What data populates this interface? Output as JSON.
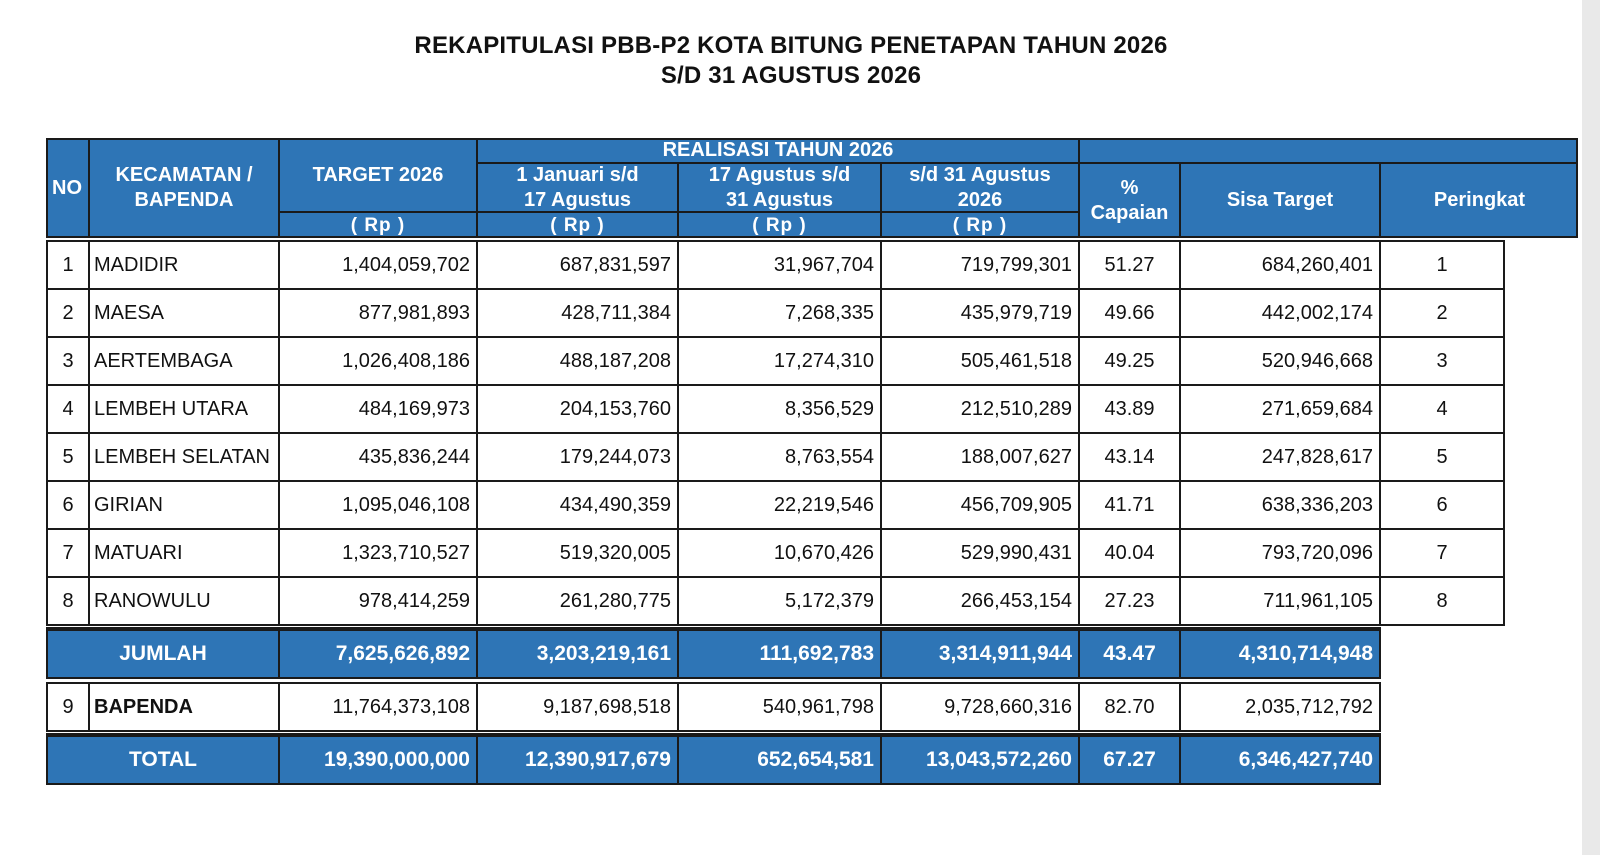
{
  "title_line1": "REKAPITULASI PBB-P2 KOTA BITUNG PENETAPAN TAHUN 2026",
  "title_line2": "S/D 31 AGUSTUS 2026",
  "headers": {
    "no": "NO",
    "kecamatan_1": "KECAMATAN /",
    "kecamatan_2": "BAPENDA",
    "target": "TARGET 2026",
    "realisasi": "REALISASI TAHUN 2026",
    "col1_1": "1 Januari s/d",
    "col1_2": "17 Agustus",
    "col2_1": "17 Agustus s/d",
    "col2_2": "31 Agustus",
    "col3_1": "s/d 31 Agustus",
    "col3_2": "2026",
    "rp": "( Rp )",
    "capaian_1": "%",
    "capaian_2": "Capaian",
    "sisa": "Sisa Target",
    "peringkat": "Peringkat"
  },
  "rows": [
    {
      "no": "1",
      "name": "MADIDIR",
      "target": "1,404,059,702",
      "r1": "687,831,597",
      "r2": "31,967,704",
      "r3": "719,799,301",
      "pct": "51.27",
      "sisa": "684,260,401",
      "rank": "1"
    },
    {
      "no": "2",
      "name": "MAESA",
      "target": "877,981,893",
      "r1": "428,711,384",
      "r2": "7,268,335",
      "r3": "435,979,719",
      "pct": "49.66",
      "sisa": "442,002,174",
      "rank": "2"
    },
    {
      "no": "3",
      "name": "AERTEMBAGA",
      "target": "1,026,408,186",
      "r1": "488,187,208",
      "r2": "17,274,310",
      "r3": "505,461,518",
      "pct": "49.25",
      "sisa": "520,946,668",
      "rank": "3"
    },
    {
      "no": "4",
      "name": "LEMBEH UTARA",
      "target": "484,169,973",
      "r1": "204,153,760",
      "r2": "8,356,529",
      "r3": "212,510,289",
      "pct": "43.89",
      "sisa": "271,659,684",
      "rank": "4"
    },
    {
      "no": "5",
      "name": "LEMBEH SELATAN",
      "target": "435,836,244",
      "r1": "179,244,073",
      "r2": "8,763,554",
      "r3": "188,007,627",
      "pct": "43.14",
      "sisa": "247,828,617",
      "rank": "5"
    },
    {
      "no": "6",
      "name": "GIRIAN",
      "target": "1,095,046,108",
      "r1": "434,490,359",
      "r2": "22,219,546",
      "r3": "456,709,905",
      "pct": "41.71",
      "sisa": "638,336,203",
      "rank": "6"
    },
    {
      "no": "7",
      "name": "MATUARI",
      "target": "1,323,710,527",
      "r1": "519,320,005",
      "r2": "10,670,426",
      "r3": "529,990,431",
      "pct": "40.04",
      "sisa": "793,720,096",
      "rank": "7"
    },
    {
      "no": "8",
      "name": "RANOWULU",
      "target": "978,414,259",
      "r1": "261,280,775",
      "r2": "5,172,379",
      "r3": "266,453,154",
      "pct": "27.23",
      "sisa": "711,961,105",
      "rank": "8"
    }
  ],
  "jumlah": {
    "label": "JUMLAH",
    "target": "7,625,626,892",
    "r1": "3,203,219,161",
    "r2": "111,692,783",
    "r3": "3,314,911,944",
    "pct": "43.47",
    "sisa": "4,310,714,948"
  },
  "bapenda": {
    "no": "9",
    "name": "BAPENDA",
    "target": "11,764,373,108",
    "r1": "9,187,698,518",
    "r2": "540,961,798",
    "r3": "9,728,660,316",
    "pct": "82.70",
    "sisa": "2,035,712,792"
  },
  "total": {
    "label": "TOTAL",
    "target": "19,390,000,000",
    "r1": "12,390,917,679",
    "r2": "652,654,581",
    "r3": "13,043,572,260",
    "pct": "67.27",
    "sisa": "6,346,427,740"
  },
  "colors": {
    "header_blue": "#2e75b6",
    "border": "#1a1a1a"
  }
}
